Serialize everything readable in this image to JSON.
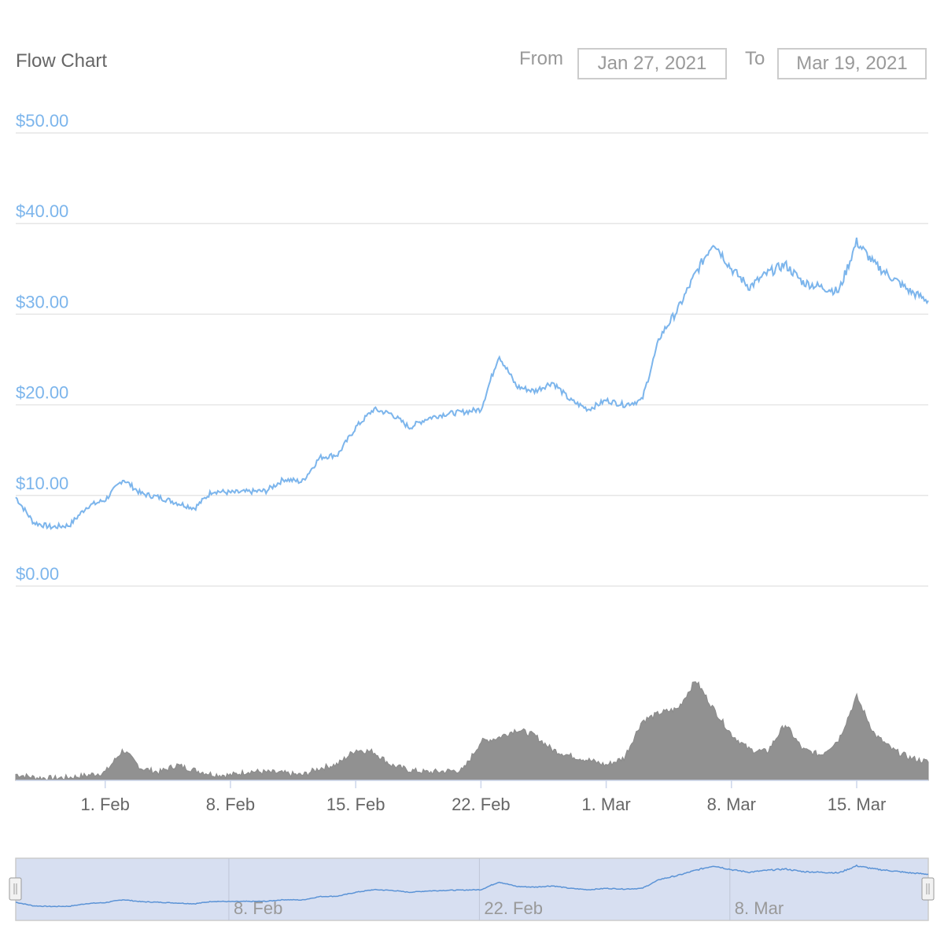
{
  "header": {
    "title": "Flow Chart",
    "from_label": "From",
    "from_value": "Jan 27, 2021",
    "to_label": "To",
    "to_value": "Mar 19, 2021"
  },
  "colors": {
    "line": "#7cb5ec",
    "volume": "#919191",
    "grid": "#e6e6e6",
    "navigator_fill": "#d7dff1",
    "axis_label": "#666666"
  },
  "chart_data": {
    "type": "line",
    "title": "Flow Chart",
    "xlabel": "",
    "ylabel": "",
    "x_range": [
      "2021-01-27",
      "2021-03-19"
    ],
    "ylim": [
      0,
      50
    ],
    "y_ticks": [
      "$0.00",
      "$10.00",
      "$20.00",
      "$30.00",
      "$40.00",
      "$50.00"
    ],
    "y_tick_values": [
      0,
      10,
      20,
      30,
      40,
      50
    ],
    "x_ticks": [
      {
        "label": "1. Feb",
        "date": "2021-02-01"
      },
      {
        "label": "8. Feb",
        "date": "2021-02-08"
      },
      {
        "label": "15. Feb",
        "date": "2021-02-15"
      },
      {
        "label": "22. Feb",
        "date": "2021-02-22"
      },
      {
        "label": "1. Mar",
        "date": "2021-03-01"
      },
      {
        "label": "8. Mar",
        "date": "2021-03-08"
      },
      {
        "label": "15. Mar",
        "date": "2021-03-15"
      }
    ],
    "grid": true,
    "price_series": {
      "x": [
        "2021-01-27",
        "2021-01-28",
        "2021-01-29",
        "2021-01-30",
        "2021-01-31",
        "2021-02-01",
        "2021-02-02",
        "2021-02-03",
        "2021-02-04",
        "2021-02-05",
        "2021-02-06",
        "2021-02-07",
        "2021-02-08",
        "2021-02-09",
        "2021-02-10",
        "2021-02-11",
        "2021-02-12",
        "2021-02-13",
        "2021-02-14",
        "2021-02-15",
        "2021-02-16",
        "2021-02-17",
        "2021-02-18",
        "2021-02-19",
        "2021-02-20",
        "2021-02-21",
        "2021-02-22",
        "2021-02-23",
        "2021-02-24",
        "2021-02-25",
        "2021-02-26",
        "2021-02-27",
        "2021-02-28",
        "2021-03-01",
        "2021-03-02",
        "2021-03-03",
        "2021-03-04",
        "2021-03-05",
        "2021-03-06",
        "2021-03-07",
        "2021-03-08",
        "2021-03-09",
        "2021-03-10",
        "2021-03-11",
        "2021-03-12",
        "2021-03-13",
        "2021-03-14",
        "2021-03-15",
        "2021-03-16",
        "2021-03-17",
        "2021-03-18",
        "2021-03-19"
      ],
      "values": [
        9.8,
        7.0,
        6.5,
        6.7,
        8.8,
        9.5,
        11.8,
        10.2,
        9.8,
        9.2,
        8.6,
        10.5,
        10.3,
        10.4,
        10.5,
        11.8,
        11.5,
        14.2,
        14.5,
        17.5,
        19.5,
        19.0,
        17.5,
        18.5,
        19.0,
        19.2,
        19.5,
        25.5,
        22.0,
        21.5,
        22.5,
        20.5,
        19.5,
        20.5,
        20.0,
        20.5,
        27.5,
        30.5,
        34.5,
        38.0,
        35.0,
        33.0,
        34.5,
        35.5,
        33.5,
        33.0,
        32.5,
        38.0,
        35.5,
        34.0,
        32.5,
        31.5
      ]
    },
    "volume_series": {
      "x": [
        "2021-01-27",
        "2021-01-28",
        "2021-01-29",
        "2021-01-30",
        "2021-01-31",
        "2021-02-01",
        "2021-02-02",
        "2021-02-03",
        "2021-02-04",
        "2021-02-05",
        "2021-02-06",
        "2021-02-07",
        "2021-02-08",
        "2021-02-09",
        "2021-02-10",
        "2021-02-11",
        "2021-02-12",
        "2021-02-13",
        "2021-02-14",
        "2021-02-15",
        "2021-02-16",
        "2021-02-17",
        "2021-02-18",
        "2021-02-19",
        "2021-02-20",
        "2021-02-21",
        "2021-02-22",
        "2021-02-23",
        "2021-02-24",
        "2021-02-25",
        "2021-02-26",
        "2021-02-27",
        "2021-02-28",
        "2021-03-01",
        "2021-03-02",
        "2021-03-03",
        "2021-03-04",
        "2021-03-05",
        "2021-03-06",
        "2021-03-07",
        "2021-03-08",
        "2021-03-09",
        "2021-03-10",
        "2021-03-11",
        "2021-03-12",
        "2021-03-13",
        "2021-03-14",
        "2021-03-15",
        "2021-03-16",
        "2021-03-17",
        "2021-03-18",
        "2021-03-19"
      ],
      "values": [
        0.06,
        0.03,
        0.02,
        0.03,
        0.05,
        0.08,
        0.3,
        0.12,
        0.08,
        0.15,
        0.1,
        0.06,
        0.05,
        0.09,
        0.08,
        0.07,
        0.05,
        0.12,
        0.16,
        0.3,
        0.28,
        0.15,
        0.1,
        0.08,
        0.09,
        0.1,
        0.38,
        0.42,
        0.5,
        0.44,
        0.3,
        0.24,
        0.2,
        0.15,
        0.22,
        0.58,
        0.66,
        0.7,
        0.98,
        0.7,
        0.45,
        0.3,
        0.28,
        0.55,
        0.3,
        0.25,
        0.4,
        0.82,
        0.45,
        0.3,
        0.22,
        0.18
      ]
    },
    "navigator": {
      "x_ticks": [
        {
          "label": "8. Feb",
          "date": "2021-02-08"
        },
        {
          "label": "22. Feb",
          "date": "2021-02-22"
        },
        {
          "label": "8. Mar",
          "date": "2021-03-08"
        }
      ],
      "selected_range": [
        "2021-01-27",
        "2021-03-19"
      ]
    }
  }
}
